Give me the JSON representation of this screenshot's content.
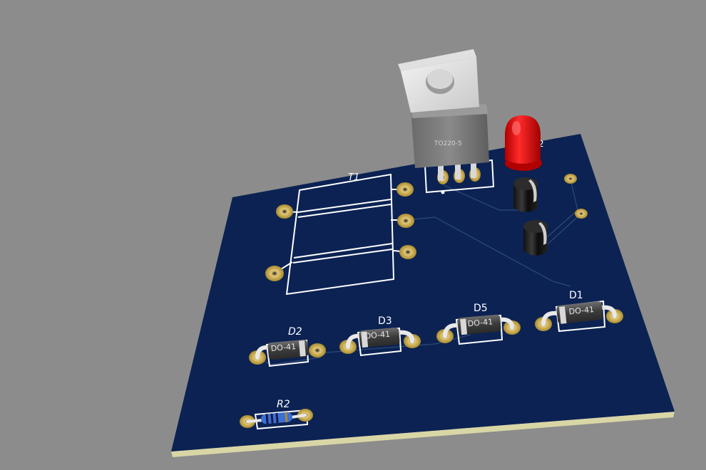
{
  "viewer": {
    "background_color": "#8c8c8c",
    "board_color": "#0b2253",
    "silkscreen_color": "#ffffff",
    "pad_color": "#c7a64a"
  },
  "components": {
    "regulator": {
      "package": "TO220-5"
    },
    "transformer": {
      "designator": "T1"
    },
    "led": {
      "designator": "2",
      "color": "#e01515"
    },
    "diodes": [
      {
        "designator": "D1",
        "package": "DO-41"
      },
      {
        "designator": "D2",
        "package": "DO-41"
      },
      {
        "designator": "D3",
        "package": "DO-41"
      },
      {
        "designator": "D5",
        "package": "DO-41"
      }
    ],
    "resistor": {
      "designator": "R2"
    }
  }
}
